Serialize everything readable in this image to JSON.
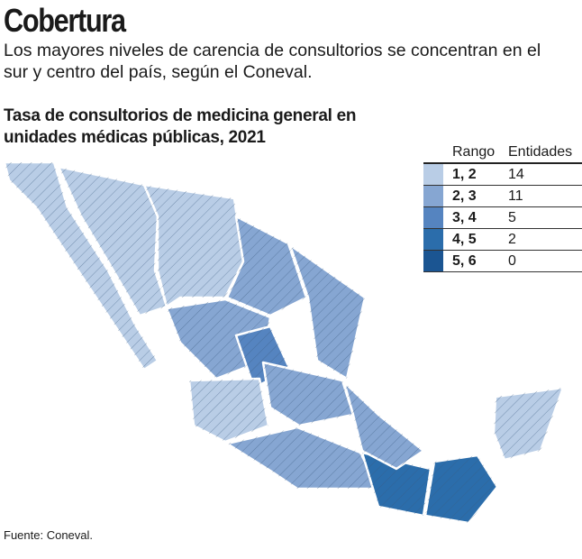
{
  "header": {
    "title": "Cobertura",
    "subtitle": "Los mayores niveles de carencia de consultorios se concentran en el sur y centro del país, según el Coneval."
  },
  "chart_title": "Tasa de consultorios de medicina general en unidades médicas públicas, 2021",
  "legend": {
    "col_range": "Rango",
    "col_count": "Entidades",
    "rows": [
      {
        "range": "1, 2",
        "count": "14",
        "color": "#b9cde6"
      },
      {
        "range": "2, 3",
        "count": "11",
        "color": "#86a6d2"
      },
      {
        "range": "3, 4",
        "count": "5",
        "color": "#5584c0"
      },
      {
        "range": "4, 5",
        "count": "2",
        "color": "#2b6dab"
      },
      {
        "range": "5, 6",
        "count": "0",
        "color": "#1b5592"
      }
    ]
  },
  "map": {
    "type": "choropleth",
    "region": "México",
    "classes_by_region": {
      "baja-california": 0,
      "sonora": 0,
      "chihuahua": 0,
      "coahuila": 1,
      "noreste": 1,
      "sinaloa-durango": 1,
      "zacatecas": 2,
      "centro": 1,
      "occidente": 0,
      "sur-pacifico": 1,
      "oaxaca": 3,
      "chiapas": 3,
      "veracruz": 1,
      "yucatan": 0
    }
  },
  "source": "Fuente: Coneval."
}
